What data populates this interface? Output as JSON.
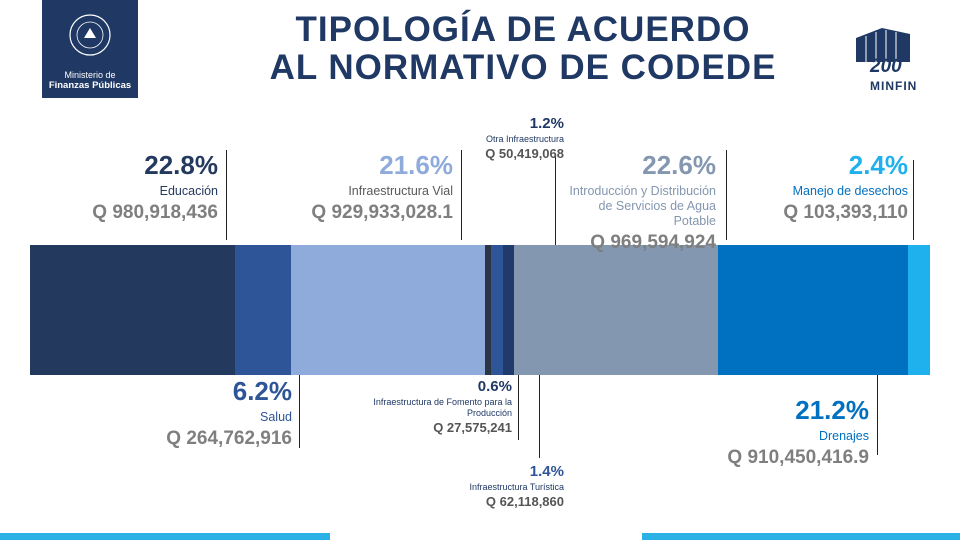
{
  "header": {
    "ministry_lines": [
      "Ministerio de",
      "Finanzas Públicas"
    ],
    "anniversary": "200",
    "brand": "MINFIN"
  },
  "chart_data": {
    "type": "stacked-bar",
    "title": [
      "TIPOLOGÍA DE ACUERDO",
      "AL NORMATIVO DE CODEDE"
    ],
    "categories": [
      "Educación",
      "Salud",
      "Infraestructura Vial",
      "Infraestructura de Fomento para la Producción",
      "Infraestructura Turística",
      "Otra Infraestructura",
      "Introducción y Distribución de Servicios de Agua Potable",
      "Drenajes",
      "Manejo de desechos"
    ],
    "values": [
      22.8,
      6.2,
      21.6,
      0.6,
      1.4,
      1.2,
      22.6,
      21.2,
      2.4
    ],
    "value_labels": [
      "22.8%",
      "6.2%",
      "21.6%",
      "0.6%",
      "1.4%",
      "1.2%",
      "22.6%",
      "21.2%",
      "2.4%"
    ],
    "amounts": [
      "Q 980,918,436",
      "Q 264,762,916",
      "Q 929,933,028.1",
      "Q 27,575,241",
      "Q 62,118,860",
      "Q 50,419,068",
      "Q 969,594,924",
      "Q 910,450,416.9",
      "Q 103,393,110"
    ],
    "colors": [
      "#23395e",
      "#2e5597",
      "#8eabdc",
      "#2b3544",
      "#2e5597",
      "#1f3a6b",
      "#8497b0",
      "#0070c0",
      "#1fb0ee"
    ]
  }
}
